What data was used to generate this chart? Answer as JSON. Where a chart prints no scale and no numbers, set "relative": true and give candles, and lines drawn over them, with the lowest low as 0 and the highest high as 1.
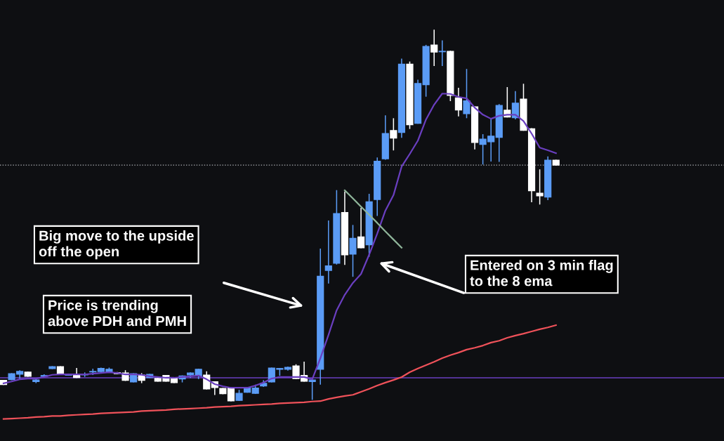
{
  "chart_data": {
    "type": "candlestick",
    "relative": true,
    "categories": [
      null,
      null,
      null,
      null,
      null,
      null,
      null,
      null,
      null,
      null,
      null,
      null,
      null,
      null,
      null,
      null,
      null,
      null,
      null,
      null,
      null,
      null,
      null,
      null,
      null,
      null,
      null,
      null,
      null,
      null,
      null,
      null,
      null,
      null,
      null,
      null,
      null,
      null,
      null,
      null,
      null,
      null,
      null,
      null,
      null,
      null,
      null,
      null,
      null,
      null,
      null,
      null,
      null,
      null,
      null,
      null,
      null,
      null,
      null,
      null,
      null,
      null,
      null,
      null,
      null,
      null,
      null,
      null,
      null
    ],
    "ohlc": [
      [
        0.055,
        0.055,
        0.044,
        0.044
      ],
      [
        0.057,
        0.073,
        0.057,
        0.073
      ],
      [
        0.072,
        0.081,
        0.061,
        0.079
      ],
      [
        0.077,
        0.077,
        0.066,
        0.066
      ],
      [
        0.052,
        0.057,
        0.049,
        0.056
      ],
      [
        0.066,
        0.07,
        0.066,
        0.068
      ],
      [
        0.087,
        0.092,
        0.087,
        0.092
      ],
      [
        0.092,
        0.092,
        0.071,
        0.071
      ],
      [
        0.069,
        0.072,
        0.069,
        0.071
      ],
      [
        0.071,
        0.087,
        0.063,
        0.063
      ],
      [
        0.07,
        0.075,
        0.066,
        0.071
      ],
      [
        0.078,
        0.085,
        0.071,
        0.079
      ],
      [
        0.079,
        0.088,
        0.077,
        0.087
      ],
      [
        0.078,
        0.088,
        0.077,
        0.085
      ],
      [
        0.076,
        0.076,
        0.073,
        0.073
      ],
      [
        0.075,
        0.081,
        0.055,
        0.055
      ],
      [
        0.051,
        0.073,
        0.051,
        0.073
      ],
      [
        0.069,
        0.073,
        0.049,
        0.055
      ],
      [
        0.063,
        0.071,
        0.063,
        0.071
      ],
      [
        0.06,
        0.06,
        0.053,
        0.053
      ],
      [
        0.068,
        0.068,
        0.053,
        0.053
      ],
      [
        0.06,
        0.06,
        0.049,
        0.049
      ],
      [
        0.059,
        0.067,
        0.051,
        0.067
      ],
      [
        0.07,
        0.075,
        0.063,
        0.075
      ],
      [
        0.067,
        0.085,
        0.06,
        0.085
      ],
      [
        0.069,
        0.078,
        0.032,
        0.032
      ],
      [
        0.051,
        0.051,
        0.017,
        0.036
      ],
      [
        0.033,
        0.033,
        0.019,
        0.019
      ],
      [
        0.035,
        0.035,
        0,
        0
      ],
      [
        0.001,
        0.028,
        0.001,
        0.02
      ],
      [
        0.023,
        0.035,
        0.023,
        0.035
      ],
      [
        0.02,
        0.042,
        0.02,
        0.034
      ],
      [
        0.04,
        0.054,
        0.039,
        0.047
      ],
      [
        0.051,
        0.088,
        0.051,
        0.088
      ],
      [
        0.085,
        0.087,
        0.069,
        0.087
      ],
      [
        0.085,
        0.091,
        0.083,
        0.09
      ],
      [
        0.094,
        0.097,
        0.06,
        0.06
      ],
      [
        0.068,
        0.104,
        0.053,
        0.053
      ],
      [
        0.052,
        0.056,
        0.004,
        0.056
      ],
      [
        0.085,
        0.409,
        0.045,
        0.336
      ],
      [
        0.352,
        0.485,
        0.318,
        0.364
      ],
      [
        0.371,
        0.567,
        0.369,
        0.505
      ],
      [
        0.508,
        0.563,
        0.368,
        0.394
      ],
      [
        0.396,
        0.473,
        0.336,
        0.438
      ],
      [
        0.442,
        0.519,
        0.413,
        0.413
      ],
      [
        0.421,
        0.557,
        0.39,
        0.537
      ],
      [
        0.543,
        0.655,
        0.5,
        0.646
      ],
      [
        0.653,
        0.769,
        0.652,
        0.721
      ],
      [
        0.729,
        0.761,
        0.677,
        0.709
      ],
      [
        0.724,
        0.922,
        0.711,
        0.908
      ],
      [
        0.908,
        0.914,
        0.735,
        0.745
      ],
      [
        0.749,
        0.865,
        0.749,
        0.856
      ],
      [
        0.853,
        0.959,
        0.822,
        0.956
      ],
      [
        0.96,
        1.0,
        0.905,
        0.941
      ],
      [
        0.942,
        0.971,
        0.905,
        0.943
      ],
      [
        0.943,
        0.943,
        0.81,
        0.824
      ],
      [
        0.817,
        0.843,
        0.769,
        0.785
      ],
      [
        0.775,
        0.894,
        0.764,
        0.809
      ],
      [
        0.793,
        0.793,
        0.68,
        0.697
      ],
      [
        0.692,
        0.718,
        0.639,
        0.706
      ],
      [
        0.699,
        0.758,
        0.647,
        0.714
      ],
      [
        0.711,
        0.799,
        0.646,
        0.797
      ],
      [
        0.784,
        0.845,
        0.766,
        0.766
      ],
      [
        0.764,
        0.834,
        0.761,
        0.803
      ],
      [
        0.814,
        0.854,
        0.73,
        0.73
      ],
      [
        0.734,
        0.734,
        0.537,
        0.567
      ],
      [
        0.56,
        0.623,
        0.531,
        0.553
      ],
      [
        0.55,
        0.658,
        0.543,
        0.649
      ],
      [
        0.649,
        0.649,
        0.636,
        0.636
      ]
    ],
    "colors": [
      "#ffffff",
      "#5b9cf6",
      "#5b9cf6",
      "#ffffff",
      "#5b9cf6",
      "#5b9cf6",
      "#5b9cf6",
      "#ffffff",
      "#5b9cf6",
      "#ffffff",
      "#5b9cf6",
      "#5b9cf6",
      "#5b9cf6",
      "#5b9cf6",
      "#ffffff",
      "#ffffff",
      "#5b9cf6",
      "#ffffff",
      "#5b9cf6",
      "#ffffff",
      "#ffffff",
      "#ffffff",
      "#5b9cf6",
      "#5b9cf6",
      "#5b9cf6",
      "#ffffff",
      "#ffffff",
      "#ffffff",
      "#ffffff",
      "#5b9cf6",
      "#5b9cf6",
      "#5b9cf6",
      "#5b9cf6",
      "#5b9cf6",
      "#5b9cf6",
      "#5b9cf6",
      "#ffffff",
      "#ffffff",
      "#5b9cf6",
      "#5b9cf6",
      "#5b9cf6",
      "#5b9cf6",
      "#ffffff",
      "#5b9cf6",
      "#ffffff",
      "#5b9cf6",
      "#5b9cf6",
      "#5b9cf6",
      "#ffffff",
      "#5b9cf6",
      "#ffffff",
      "#5b9cf6",
      "#5b9cf6",
      "#ffffff",
      "#5b9cf6",
      "#ffffff",
      "#ffffff",
      "#5b9cf6",
      "#ffffff",
      "#5b9cf6",
      "#5b9cf6",
      "#5b9cf6",
      "#ffffff",
      "#5b9cf6",
      "#ffffff",
      "#ffffff",
      "#ffffff",
      "#5b9cf6",
      "#ffffff"
    ],
    "series": [
      {
        "type": "line",
        "color": "#6a3fc0",
        "values": [
          0.047,
          0.052,
          0.058,
          0.06,
          0.06,
          0.064,
          0.07,
          0.071,
          0.071,
          0.071,
          0.071,
          0.073,
          0.075,
          0.077,
          0.075,
          0.071,
          0.071,
          0.07,
          0.066,
          0.064,
          0.062,
          0.062,
          0.064,
          0.066,
          0.068,
          0.058,
          0.045,
          0.039,
          0.035,
          0.035,
          0.035,
          0.041,
          0.049,
          0.06,
          0.064,
          0.064,
          0.064,
          0.064,
          0.058,
          0.115,
          0.178,
          0.244,
          0.286,
          0.318,
          0.342,
          0.394,
          0.451,
          0.513,
          0.555,
          0.632,
          0.666,
          0.702,
          0.759,
          0.799,
          0.829,
          0.828,
          0.82,
          0.816,
          0.791,
          0.772,
          0.761,
          0.769,
          0.772,
          0.772,
          0.755,
          0.721,
          0.683,
          0.676,
          0.668
        ]
      },
      {
        "type": "line",
        "color": "#f0525a",
        "values": [
          -0.049,
          -0.048,
          -0.047,
          -0.046,
          -0.044,
          -0.043,
          -0.041,
          -0.041,
          -0.039,
          -0.038,
          -0.037,
          -0.036,
          -0.034,
          -0.033,
          -0.032,
          -0.031,
          -0.03,
          -0.028,
          -0.027,
          -0.026,
          -0.025,
          -0.023,
          -0.022,
          -0.021,
          -0.02,
          -0.019,
          -0.017,
          -0.016,
          -0.015,
          -0.013,
          -0.012,
          -0.011,
          -0.01,
          -0.009,
          -0.007,
          -0.006,
          -0.005,
          -0.004,
          -0.002,
          -0.001,
          0.005,
          0.009,
          0.013,
          0.016,
          0.024,
          0.032,
          0.041,
          0.049,
          0.056,
          0.064,
          0.077,
          0.087,
          0.096,
          0.105,
          0.115,
          0.123,
          0.13,
          0.138,
          0.143,
          0.149,
          0.157,
          0.162,
          0.17,
          0.176,
          0.181,
          0.187,
          0.193,
          0.198,
          0.204
        ]
      },
      {
        "type": "line",
        "color": "#8fb59a",
        "values": [
          null,
          null,
          null,
          null,
          null,
          null,
          null,
          null,
          null,
          null,
          null,
          null,
          null,
          null,
          null,
          null,
          null,
          null,
          null,
          null,
          null,
          null,
          null,
          null,
          null,
          null,
          null,
          null,
          null,
          null,
          null,
          null,
          null,
          null,
          null,
          null,
          null,
          null,
          null,
          null,
          null,
          null,
          0.568,
          0.546,
          0.524,
          0.502,
          0.48,
          0.457,
          0.435,
          0.413,
          null,
          null,
          null,
          null,
          null,
          null,
          null,
          null,
          null,
          null,
          null,
          null,
          null,
          null,
          null,
          null,
          null,
          null,
          null
        ]
      }
    ],
    "ref_lines": [
      {
        "axis": "y",
        "value": 0.062,
        "color": "#6a3fc0",
        "line_style": "solid"
      },
      {
        "axis": "y",
        "value": 0.636,
        "color": "#b0b3b8",
        "line_style": "dotted"
      }
    ],
    "annotations": [
      "Big move to the upside\noff the open",
      "Price is trending\nabove PDH and PMH",
      "Entered on 3 min flag\nto the 8 ema"
    ]
  }
}
